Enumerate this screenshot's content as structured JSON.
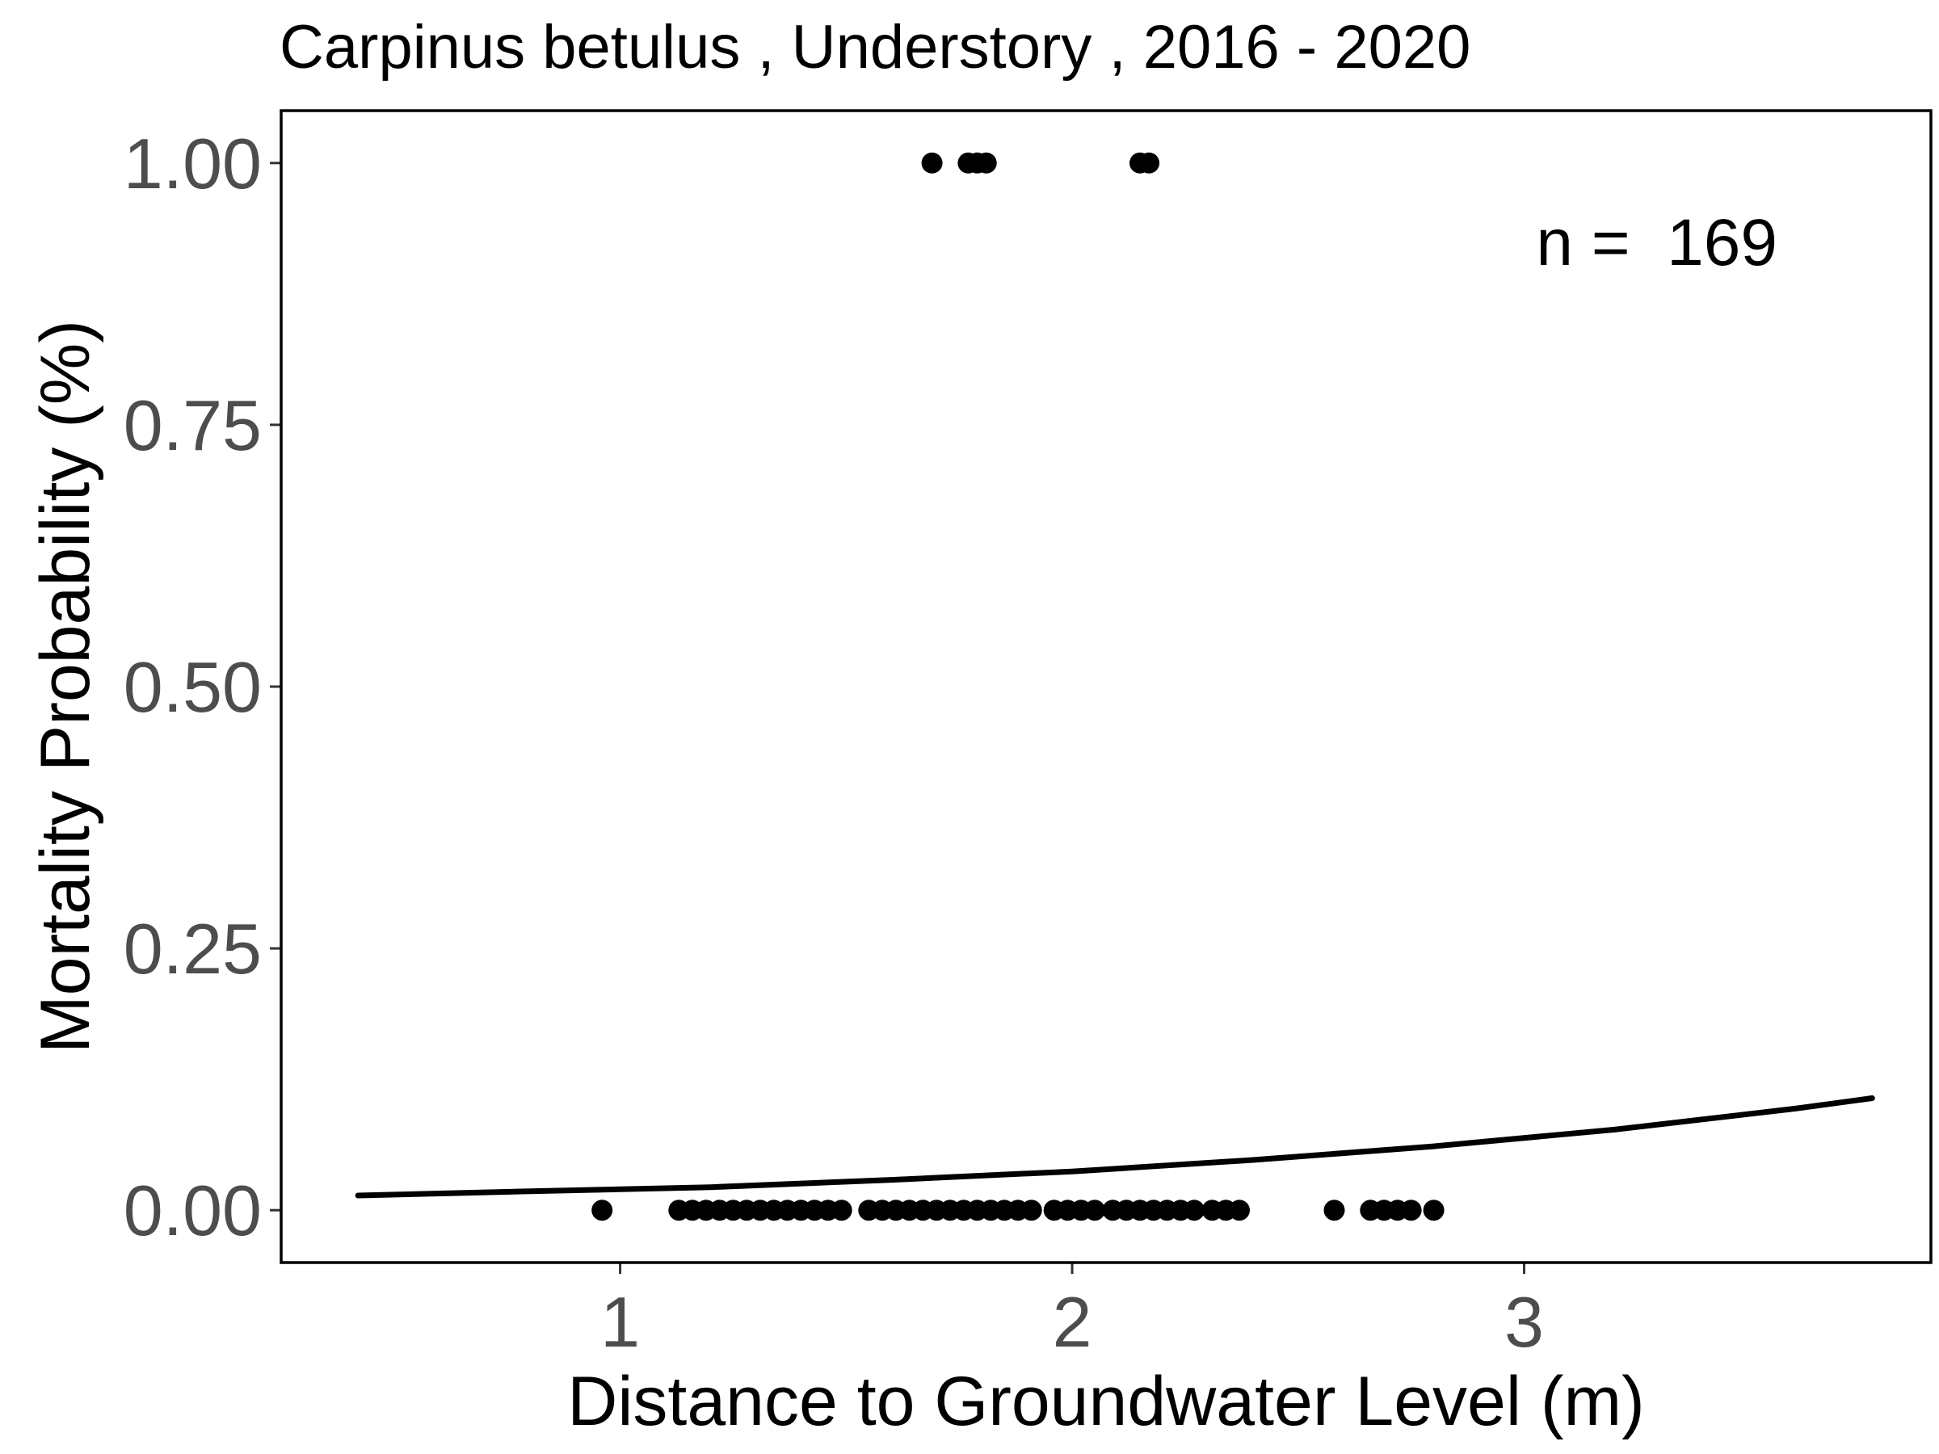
{
  "chart_data": {
    "type": "scatter",
    "title": "Carpinus betulus , Understory , 2016 - 2020",
    "xlabel": "Distance to Groundwater Level (m)",
    "ylabel": "Mortality Probability (%)",
    "xlim": [
      0.25,
      3.9
    ],
    "ylim": [
      -0.05,
      1.05
    ],
    "x_ticks": [
      1,
      2,
      3
    ],
    "x_tick_labels": [
      "1",
      "2",
      "3"
    ],
    "y_ticks": [
      0,
      0.25,
      0.5,
      0.75,
      1.0
    ],
    "y_tick_labels": [
      "0.00",
      "0.25",
      "0.50",
      "0.75",
      "1.00"
    ],
    "grid": false,
    "annotation": "n =  169",
    "series": [
      {
        "kind": "points",
        "points": [
          {
            "x": 1.69,
            "y": 1
          },
          {
            "x": 1.77,
            "y": 1
          },
          {
            "x": 1.79,
            "y": 1
          },
          {
            "x": 1.81,
            "y": 1
          },
          {
            "x": 2.15,
            "y": 1
          },
          {
            "x": 2.17,
            "y": 1
          },
          {
            "x": 0.96,
            "y": 0
          },
          {
            "x": 1.13,
            "y": 0
          },
          {
            "x": 1.16,
            "y": 0
          },
          {
            "x": 1.19,
            "y": 0
          },
          {
            "x": 1.22,
            "y": 0
          },
          {
            "x": 1.25,
            "y": 0
          },
          {
            "x": 1.28,
            "y": 0
          },
          {
            "x": 1.31,
            "y": 0
          },
          {
            "x": 1.34,
            "y": 0
          },
          {
            "x": 1.37,
            "y": 0
          },
          {
            "x": 1.4,
            "y": 0
          },
          {
            "x": 1.43,
            "y": 0
          },
          {
            "x": 1.46,
            "y": 0
          },
          {
            "x": 1.49,
            "y": 0
          },
          {
            "x": 1.55,
            "y": 0
          },
          {
            "x": 1.58,
            "y": 0
          },
          {
            "x": 1.61,
            "y": 0
          },
          {
            "x": 1.64,
            "y": 0
          },
          {
            "x": 1.67,
            "y": 0
          },
          {
            "x": 1.7,
            "y": 0
          },
          {
            "x": 1.73,
            "y": 0
          },
          {
            "x": 1.76,
            "y": 0
          },
          {
            "x": 1.79,
            "y": 0
          },
          {
            "x": 1.82,
            "y": 0
          },
          {
            "x": 1.85,
            "y": 0
          },
          {
            "x": 1.88,
            "y": 0
          },
          {
            "x": 1.91,
            "y": 0
          },
          {
            "x": 1.96,
            "y": 0
          },
          {
            "x": 1.99,
            "y": 0
          },
          {
            "x": 2.02,
            "y": 0
          },
          {
            "x": 2.05,
            "y": 0
          },
          {
            "x": 2.09,
            "y": 0
          },
          {
            "x": 2.12,
            "y": 0
          },
          {
            "x": 2.15,
            "y": 0
          },
          {
            "x": 2.18,
            "y": 0
          },
          {
            "x": 2.21,
            "y": 0
          },
          {
            "x": 2.24,
            "y": 0
          },
          {
            "x": 2.27,
            "y": 0
          },
          {
            "x": 2.31,
            "y": 0
          },
          {
            "x": 2.34,
            "y": 0
          },
          {
            "x": 2.37,
            "y": 0
          },
          {
            "x": 2.58,
            "y": 0
          },
          {
            "x": 2.66,
            "y": 0
          },
          {
            "x": 2.69,
            "y": 0
          },
          {
            "x": 2.72,
            "y": 0
          },
          {
            "x": 2.75,
            "y": 0
          },
          {
            "x": 2.8,
            "y": 0
          }
        ]
      },
      {
        "kind": "fit-line",
        "points": [
          {
            "x": 0.42,
            "y": 0.014
          },
          {
            "x": 0.8,
            "y": 0.018
          },
          {
            "x": 1.2,
            "y": 0.022
          },
          {
            "x": 1.6,
            "y": 0.029
          },
          {
            "x": 2.0,
            "y": 0.037
          },
          {
            "x": 2.4,
            "y": 0.048
          },
          {
            "x": 2.8,
            "y": 0.061
          },
          {
            "x": 3.2,
            "y": 0.077
          },
          {
            "x": 3.6,
            "y": 0.097
          },
          {
            "x": 3.77,
            "y": 0.107
          }
        ]
      }
    ]
  }
}
